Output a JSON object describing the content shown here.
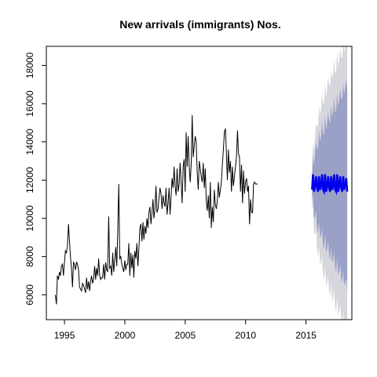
{
  "chart_data": {
    "type": "line",
    "title": "New arrivals (immigrants) Nos.",
    "xlabel": "",
    "ylabel": "",
    "xlim": [
      1993.5,
      2018.8
    ],
    "ylim": [
      4700,
      19000
    ],
    "x_ticks": [
      1995,
      2000,
      2005,
      2010,
      2015
    ],
    "y_ticks": [
      6000,
      8000,
      10000,
      12000,
      14000,
      16000,
      18000
    ],
    "grid": false,
    "legend": "none",
    "colors": {
      "history": "#000000",
      "forecast": "#0000ee",
      "interval_95": "#d6d6dd",
      "interval_80": "#9aa0c6"
    },
    "history": {
      "start": 1994.25,
      "step": 0.0833,
      "values": [
        6000,
        5500,
        7000,
        6800,
        7200,
        7000,
        7500,
        7600,
        7000,
        7700,
        8300,
        8200,
        8600,
        9700,
        8800,
        8000,
        7400,
        6400,
        7700,
        7600,
        7300,
        7700,
        7600,
        7300,
        6400,
        6300,
        6200,
        6600,
        6500,
        6300,
        6100,
        6900,
        6300,
        6700,
        6200,
        6700,
        7000,
        6600,
        6800,
        7500,
        6800,
        7400,
        7000,
        7900,
        7000,
        6800,
        6900,
        6900,
        7600,
        6800,
        7700,
        7300,
        7200,
        10100,
        7400,
        7500,
        7000,
        8200,
        7200,
        7800,
        8500,
        7500,
        9300,
        11800,
        7900,
        8000,
        7600,
        7400,
        7200,
        7800,
        7300,
        7600,
        7600,
        8700,
        7000,
        8200,
        7400,
        8100,
        6900,
        8300,
        7900,
        8700,
        7500,
        8400,
        9500,
        9700,
        8800,
        9800,
        8900,
        9600,
        9200,
        10000,
        9500,
        10300,
        10600,
        9700,
        10300,
        11000,
        10000,
        10500,
        11700,
        10300,
        10500,
        11100,
        11600,
        11300,
        10500,
        11200,
        10800,
        10600,
        11600,
        10200,
        10800,
        11600,
        10200,
        11100,
        12100,
        11600,
        12700,
        11700,
        11200,
        12600,
        11400,
        11800,
        12900,
        11900,
        10800,
        12700,
        13100,
        11400,
        14500,
        12700,
        14300,
        12700,
        11900,
        12800,
        15400,
        13200,
        13800,
        14300,
        14000,
        12400,
        11500,
        13000,
        12600,
        12200,
        11900,
        12900,
        11600,
        12600,
        10900,
        10400,
        11200,
        10000,
        11900,
        9500,
        10600,
        9800,
        11500,
        10700,
        10500,
        10900,
        11900,
        11100,
        11500,
        11900,
        12800,
        13600,
        14500,
        14700,
        13400,
        12000,
        13600,
        12400,
        13000,
        11400,
        12700,
        11700,
        12200,
        12700,
        13200,
        14600,
        13400,
        13200,
        11400,
        12800,
        10800,
        12500,
        11300,
        11900,
        12100,
        11400,
        11700,
        9700,
        11000,
        10300,
        10300,
        11800,
        11900,
        11800,
        11800,
        11800
      ]
    },
    "forecast": {
      "start": 2015.5,
      "step": 0.0833,
      "values": [
        11500,
        12300,
        11400,
        11700,
        12200,
        11600,
        11400,
        12200,
        11500,
        11700,
        12300,
        11500,
        11400,
        12300,
        11400,
        11700,
        12200,
        11600,
        11400,
        12200,
        11500,
        11700,
        12300,
        11500,
        11400,
        12300,
        11400,
        11700,
        12200,
        11600,
        11400,
        12200,
        11500,
        11700,
        12100,
        11400
      ],
      "upper_80": [
        12100,
        13300,
        12800,
        13300,
        14000,
        13700,
        13600,
        14600,
        14000,
        14300,
        15100,
        14400,
        14400,
        15400,
        14600,
        15000,
        15600,
        15100,
        15000,
        15900,
        15300,
        15600,
        16300,
        15600,
        15600,
        16600,
        15800,
        16200,
        16800,
        16300,
        16200,
        17100,
        16500,
        16800,
        17300,
        16700
      ],
      "lower_80": [
        10900,
        11300,
        10000,
        10100,
        10400,
        9500,
        9200,
        9800,
        9000,
        9100,
        9500,
        8600,
        8400,
        9200,
        8200,
        8400,
        8800,
        8100,
        7800,
        8500,
        7700,
        7800,
        8300,
        7400,
        7200,
        8000,
        7000,
        7200,
        7600,
        6900,
        6600,
        7300,
        6500,
        6600,
        6900,
        6100
      ],
      "upper_95": [
        12500,
        13900,
        13600,
        14200,
        15000,
        14800,
        14800,
        15900,
        15400,
        15700,
        16600,
        16000,
        16000,
        17100,
        16300,
        16800,
        17400,
        17000,
        16900,
        17800,
        17300,
        17600,
        18300,
        17600,
        17700,
        18700,
        17900,
        18300,
        18900,
        18400,
        18400,
        19300,
        18700,
        19000,
        19500,
        18800
      ],
      "lower_95": [
        10500,
        10700,
        9200,
        9200,
        9400,
        8400,
        8000,
        8500,
        7600,
        7700,
        8000,
        7000,
        6800,
        7500,
        6500,
        6600,
        7000,
        6200,
        5900,
        6600,
        5700,
        5800,
        6300,
        5400,
        5100,
        5900,
        4900,
        5100,
        5500,
        4800,
        4400,
        5100,
        4300,
        4400,
        4700,
        4000
      ]
    }
  }
}
